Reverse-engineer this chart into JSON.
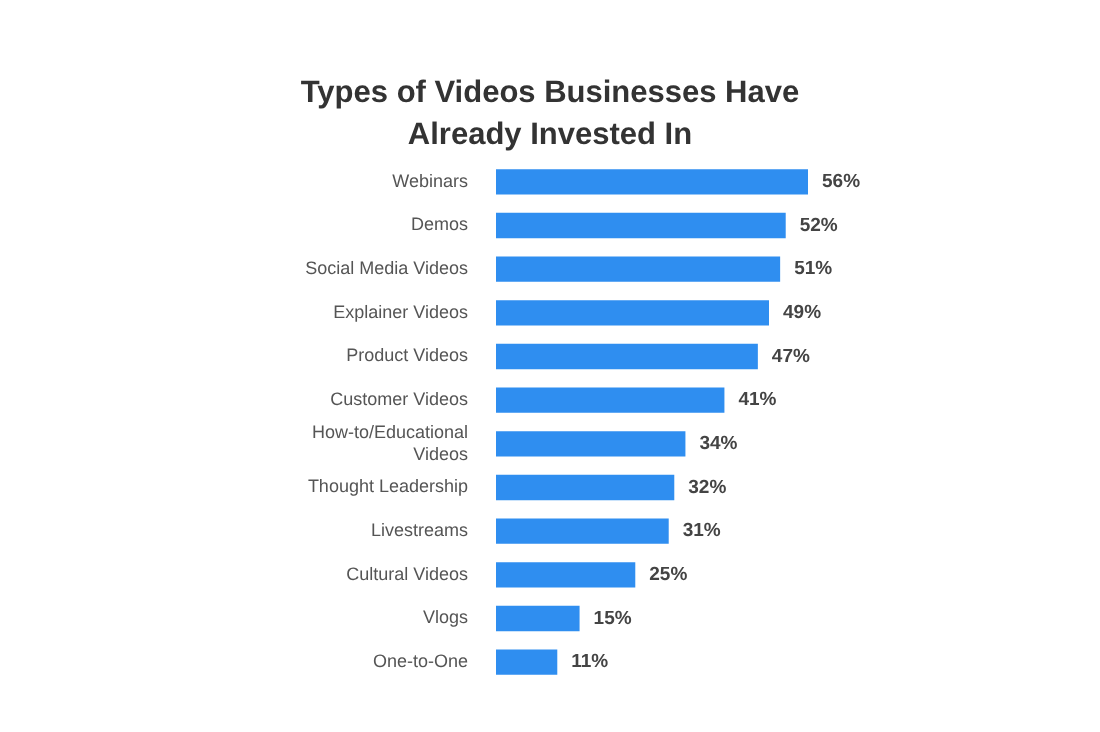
{
  "chart_data": {
    "type": "bar",
    "orientation": "horizontal",
    "title": "Types of Videos Businesses Have Already Invested In",
    "categories": [
      "Webinars",
      "Demos",
      "Social Media Videos",
      "Explainer Videos",
      "Product Videos",
      "Customer Videos",
      "How-to/Educational Videos",
      "Thought Leadership",
      "Livestreams",
      "Cultural Videos",
      "Vlogs",
      "One-to-One"
    ],
    "values": [
      56,
      52,
      51,
      49,
      47,
      41,
      34,
      32,
      31,
      25,
      15,
      11
    ],
    "value_labels": [
      "56%",
      "52%",
      "51%",
      "49%",
      "47%",
      "41%",
      "34%",
      "32%",
      "31%",
      "25%",
      "15%",
      "11%"
    ],
    "color": "#2f8ef0",
    "grid": false,
    "legend": false
  }
}
